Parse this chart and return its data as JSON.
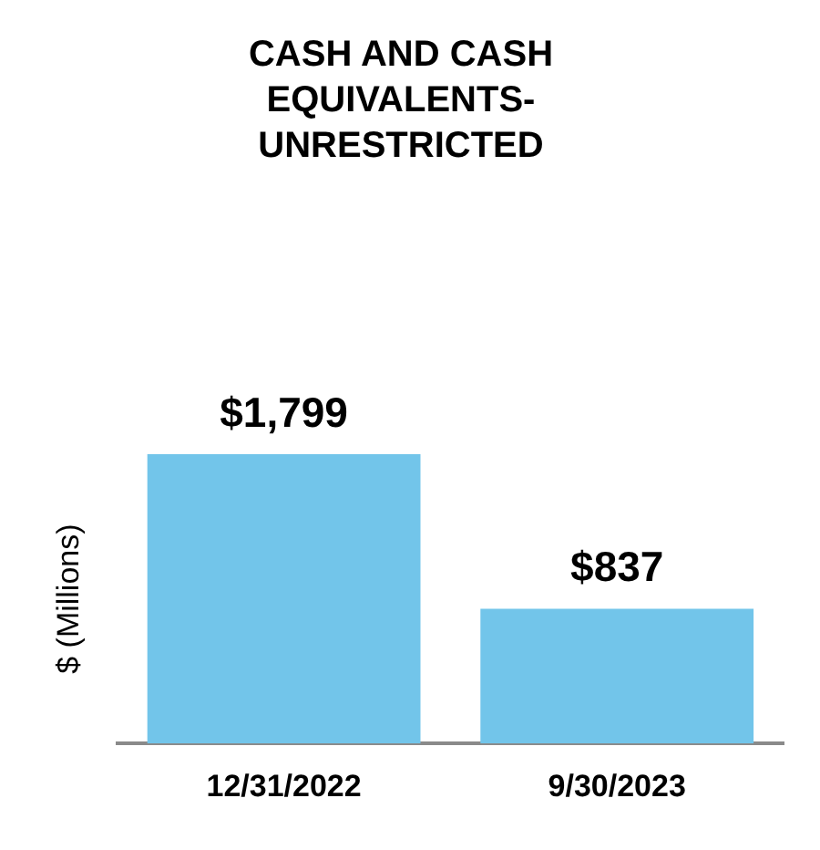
{
  "chart_data": {
    "type": "bar",
    "title": "CASH AND CASH EQUIVALENTS-UNRESTRICTED",
    "ylabel": "$ (Millions)",
    "categories": [
      "12/31/2022",
      "9/30/2023"
    ],
    "values": [
      1799,
      837
    ],
    "value_labels": [
      "$1,799",
      "$837"
    ],
    "color": "#72c5ea",
    "tick_labels": "x",
    "grid": false,
    "legend": false
  }
}
